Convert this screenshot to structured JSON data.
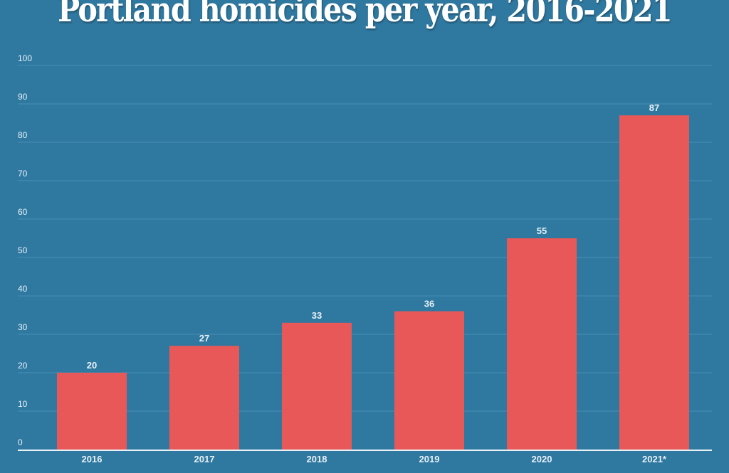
{
  "chart_data": {
    "type": "bar",
    "title": "Portland homicides per year, 2016-2021",
    "categories": [
      "2016",
      "2017",
      "2018",
      "2019",
      "2020",
      "2021*"
    ],
    "values": [
      20,
      27,
      33,
      36,
      55,
      87
    ],
    "xlabel": "",
    "ylabel": "",
    "ylim": [
      0,
      100
    ],
    "yticks": [
      0,
      10,
      20,
      30,
      40,
      50,
      60,
      70,
      80,
      90,
      100
    ],
    "grid": true,
    "data_labels": true,
    "colors": {
      "background": "#2f79a1",
      "bar": "#e85858",
      "grid": "#4a8db3",
      "axis": "#e8f1f6"
    }
  }
}
